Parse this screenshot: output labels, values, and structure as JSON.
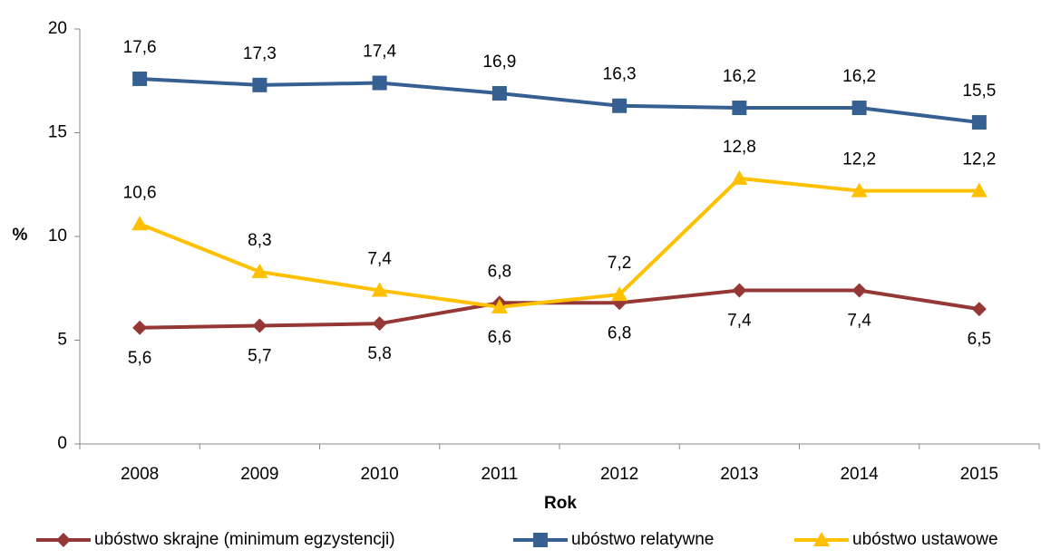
{
  "chart_data": {
    "type": "line",
    "categories": [
      "2008",
      "2009",
      "2010",
      "2011",
      "2012",
      "2013",
      "2014",
      "2015"
    ],
    "x_label": "Rok",
    "y_label": "%",
    "ylim": [
      0,
      20
    ],
    "yticks": [
      0,
      5,
      10,
      15,
      20
    ],
    "grid": false,
    "legend": "bottom",
    "series": [
      {
        "name": "ubóstwo skrajne (minimum egzystencji)",
        "color": "#953735",
        "marker": "diamond",
        "values": [
          5.6,
          5.7,
          5.8,
          6.8,
          6.8,
          7.4,
          7.4,
          6.5
        ],
        "value_labels": [
          "5,6",
          "5,7",
          "5,8",
          "6,8",
          "6,8",
          "7,4",
          "7,4",
          "6,5"
        ]
      },
      {
        "name": "ubóstwo relatywne",
        "color": "#376092",
        "marker": "square",
        "values": [
          17.6,
          17.3,
          17.4,
          16.9,
          16.3,
          16.2,
          16.2,
          15.5
        ],
        "value_labels": [
          "17,6",
          "17,3",
          "17,4",
          "16,9",
          "16,3",
          "16,2",
          "16,2",
          "15,5"
        ]
      },
      {
        "name": "ubóstwo ustawowe",
        "color": "#ffc000",
        "marker": "triangle",
        "values": [
          10.6,
          8.3,
          7.4,
          6.6,
          7.2,
          12.8,
          12.2,
          12.2
        ],
        "value_labels": [
          "10,6",
          "8,3",
          "7,4",
          "6,6",
          "7,2",
          "12,8",
          "12,2",
          "12,2"
        ]
      }
    ]
  }
}
